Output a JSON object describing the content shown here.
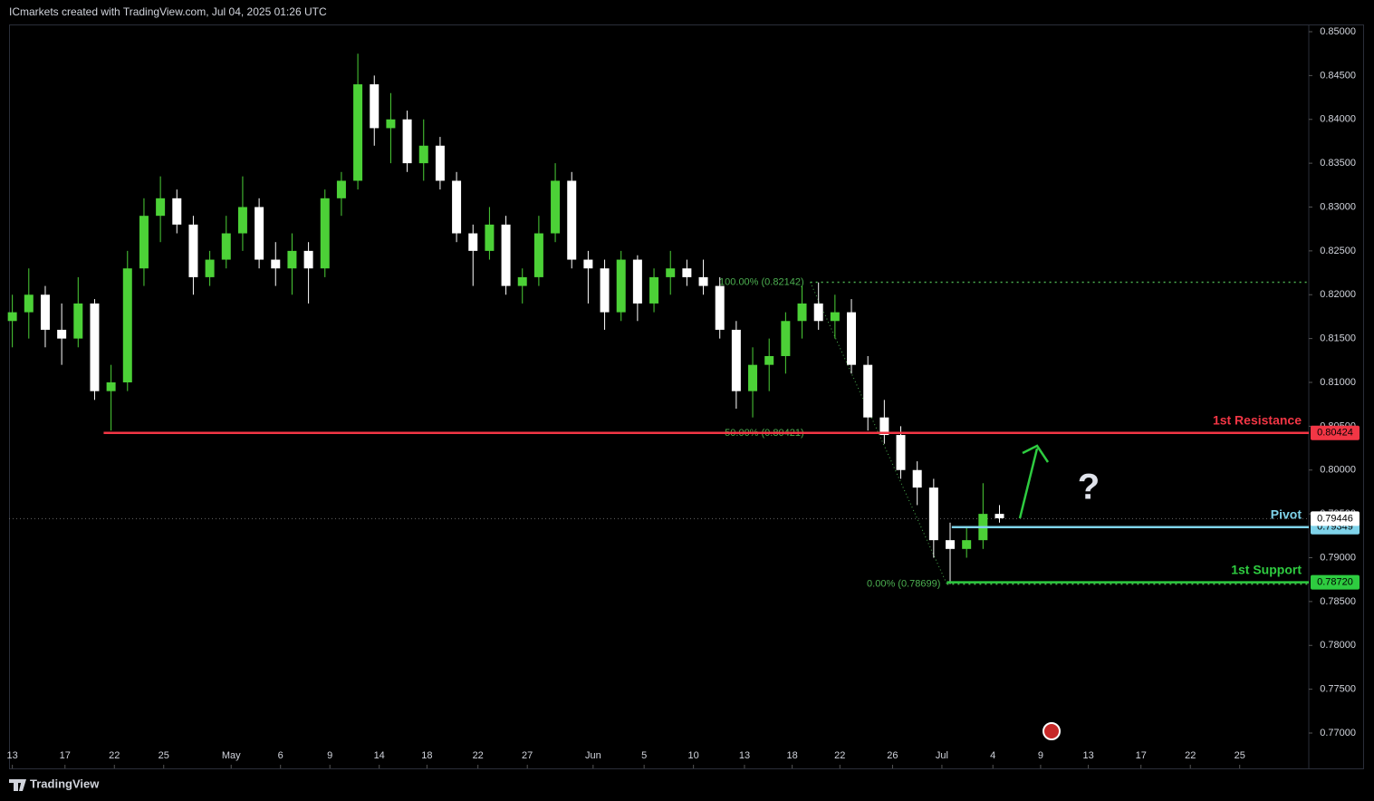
{
  "header": {
    "title": "ICmarkets created with TradingView.com, Jul 04, 2025 01:26 UTC"
  },
  "footer": {
    "brand": "TradingView"
  },
  "chart_data": {
    "type": "candlestick",
    "x": [
      0,
      1,
      2,
      3,
      4,
      5,
      6,
      7,
      8,
      9,
      10,
      11,
      12,
      13,
      14,
      15,
      16,
      17,
      18,
      19,
      20,
      21,
      22,
      23,
      24,
      25,
      26,
      27,
      28,
      29,
      30,
      31,
      32,
      33,
      34,
      35,
      36,
      37,
      38,
      39,
      40,
      41,
      42,
      43,
      44,
      45,
      46,
      47,
      48,
      49,
      50,
      51,
      52,
      53,
      54,
      55,
      56,
      57,
      58,
      59,
      60
    ],
    "open": [
      0.817,
      0.818,
      0.82,
      0.816,
      0.815,
      0.819,
      0.809,
      0.81,
      0.823,
      0.829,
      0.831,
      0.828,
      0.822,
      0.824,
      0.827,
      0.83,
      0.824,
      0.823,
      0.825,
      0.823,
      0.831,
      0.833,
      0.844,
      0.839,
      0.84,
      0.835,
      0.837,
      0.833,
      0.827,
      0.825,
      0.828,
      0.821,
      0.822,
      0.827,
      0.833,
      0.824,
      0.823,
      0.818,
      0.824,
      0.819,
      0.822,
      0.823,
      0.822,
      0.821,
      0.816,
      0.809,
      0.812,
      0.813,
      0.817,
      0.819,
      0.817,
      0.818,
      0.812,
      0.806,
      0.804,
      0.8,
      0.798,
      0.792,
      0.791,
      0.792,
      0.795
    ],
    "high": [
      0.82,
      0.823,
      0.821,
      0.819,
      0.822,
      0.8195,
      0.812,
      0.825,
      0.831,
      0.8335,
      0.832,
      0.829,
      0.825,
      0.829,
      0.8335,
      0.831,
      0.826,
      0.827,
      0.826,
      0.832,
      0.834,
      0.8475,
      0.845,
      0.843,
      0.841,
      0.84,
      0.838,
      0.834,
      0.828,
      0.83,
      0.829,
      0.823,
      0.829,
      0.835,
      0.834,
      0.825,
      0.824,
      0.825,
      0.8245,
      0.823,
      0.825,
      0.824,
      0.824,
      0.822,
      0.817,
      0.814,
      0.815,
      0.818,
      0.821,
      0.8214,
      0.82,
      0.8195,
      0.813,
      0.808,
      0.805,
      0.801,
      0.799,
      0.794,
      0.7935,
      0.7985,
      0.796
    ],
    "low": [
      0.814,
      0.815,
      0.814,
      0.812,
      0.814,
      0.808,
      0.8045,
      0.809,
      0.821,
      0.826,
      0.827,
      0.82,
      0.821,
      0.823,
      0.825,
      0.823,
      0.821,
      0.82,
      0.819,
      0.822,
      0.829,
      0.832,
      0.837,
      0.835,
      0.834,
      0.833,
      0.832,
      0.826,
      0.821,
      0.824,
      0.82,
      0.819,
      0.821,
      0.826,
      0.823,
      0.819,
      0.816,
      0.817,
      0.817,
      0.818,
      0.82,
      0.821,
      0.82,
      0.815,
      0.807,
      0.806,
      0.809,
      0.811,
      0.815,
      0.816,
      0.815,
      0.811,
      0.8045,
      0.803,
      0.799,
      0.796,
      0.79,
      0.787,
      0.79,
      0.791,
      0.794
    ],
    "close": [
      0.818,
      0.82,
      0.816,
      0.815,
      0.819,
      0.809,
      0.81,
      0.823,
      0.829,
      0.831,
      0.828,
      0.822,
      0.824,
      0.827,
      0.83,
      0.824,
      0.823,
      0.825,
      0.823,
      0.831,
      0.833,
      0.844,
      0.839,
      0.84,
      0.835,
      0.837,
      0.833,
      0.827,
      0.825,
      0.828,
      0.821,
      0.822,
      0.827,
      0.833,
      0.824,
      0.823,
      0.818,
      0.824,
      0.819,
      0.822,
      0.823,
      0.822,
      0.821,
      0.816,
      0.809,
      0.812,
      0.813,
      0.817,
      0.819,
      0.817,
      0.818,
      0.812,
      0.806,
      0.804,
      0.8,
      0.798,
      0.792,
      0.791,
      0.792,
      0.795,
      0.7945
    ],
    "up_color": "#4cd137",
    "down_color": "#ffffff",
    "xlim": [
      -0.2,
      78.8
    ],
    "xticks": [
      {
        "value": 0,
        "label": "13"
      },
      {
        "value": 3.2,
        "label": "17"
      },
      {
        "value": 6.2,
        "label": "22"
      },
      {
        "value": 9.2,
        "label": "25"
      },
      {
        "value": 13.3,
        "label": "May"
      },
      {
        "value": 16.3,
        "label": "6"
      },
      {
        "value": 19.3,
        "label": "9"
      },
      {
        "value": 22.3,
        "label": "14"
      },
      {
        "value": 25.2,
        "label": "18"
      },
      {
        "value": 28.3,
        "label": "22"
      },
      {
        "value": 31.3,
        "label": "27"
      },
      {
        "value": 35.3,
        "label": "Jun"
      },
      {
        "value": 38.4,
        "label": "5"
      },
      {
        "value": 41.4,
        "label": "10"
      },
      {
        "value": 44.5,
        "label": "13"
      },
      {
        "value": 47.4,
        "label": "18"
      },
      {
        "value": 50.3,
        "label": "22"
      },
      {
        "value": 53.5,
        "label": "26"
      },
      {
        "value": 56.5,
        "label": "Jul"
      },
      {
        "value": 59.6,
        "label": "4"
      },
      {
        "value": 62.5,
        "label": "9"
      },
      {
        "value": 65.4,
        "label": "13"
      },
      {
        "value": 68.6,
        "label": "17"
      },
      {
        "value": 71.6,
        "label": "22"
      },
      {
        "value": 74.6,
        "label": "25"
      }
    ],
    "ylim": [
      0.77,
      0.85
    ],
    "yticks": [
      {
        "value": 0.77,
        "label": "0.77000"
      },
      {
        "value": 0.775,
        "label": "0.77500"
      },
      {
        "value": 0.78,
        "label": "0.78000"
      },
      {
        "value": 0.785,
        "label": "0.78500"
      },
      {
        "value": 0.79,
        "label": "0.79000"
      },
      {
        "value": 0.795,
        "label": "0.79500"
      },
      {
        "value": 0.8,
        "label": "0.80000"
      },
      {
        "value": 0.805,
        "label": "0.80500"
      },
      {
        "value": 0.81,
        "label": "0.81000"
      },
      {
        "value": 0.815,
        "label": "0.81500"
      },
      {
        "value": 0.82,
        "label": "0.82000"
      },
      {
        "value": 0.825,
        "label": "0.82500"
      },
      {
        "value": 0.83,
        "label": "0.83000"
      },
      {
        "value": 0.835,
        "label": "0.83500"
      },
      {
        "value": 0.84,
        "label": "0.84000"
      },
      {
        "value": 0.845,
        "label": "0.84500"
      },
      {
        "value": 0.85,
        "label": "0.85000"
      }
    ],
    "current_price": {
      "value": 0.79446,
      "label": "0.79446"
    },
    "levels": [
      {
        "name": "1st Resistance",
        "value": 0.80424,
        "value_label": "0.80424",
        "color": "#f23645",
        "x_start": 5.55
      },
      {
        "name": "Pivot",
        "value": 0.79349,
        "value_label": "0.79349",
        "color": "#7fd3ea",
        "x_start": 57.1
      },
      {
        "name": "1st Support",
        "value": 0.7872,
        "value_label": "0.78720",
        "color": "#2ecc40",
        "x_start": 56.8
      }
    ],
    "fib": [
      {
        "label": "100.00% (0.82142)",
        "value": 0.82142,
        "x": 48.5
      },
      {
        "label": "50.00% (0.80421)",
        "value": 0.80421,
        "x": 48.5
      },
      {
        "label": "0.00% (0.78699)",
        "value": 0.78699,
        "x": 56.8
      }
    ],
    "fib_color": "#4caf50",
    "annotations": [
      "?"
    ]
  }
}
